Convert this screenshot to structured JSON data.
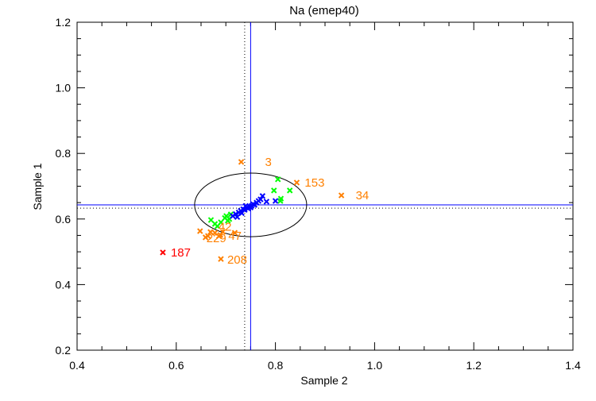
{
  "chart_data": {
    "type": "scatter",
    "title": "Na (emep40)",
    "xlabel": "Sample 2",
    "ylabel": "Sample 1",
    "xlim": [
      0.4,
      1.4
    ],
    "ylim": [
      0.2,
      1.2
    ],
    "xticks": [
      "0.4",
      "0.6",
      "0.8",
      "1.0",
      "1.2",
      "1.4"
    ],
    "yticks": [
      "0.2",
      "0.4",
      "0.6",
      "0.8",
      "1.0",
      "1.2"
    ],
    "minor_tick_step": 0.05,
    "reference_lines": {
      "solid_x": 0.75,
      "solid_y": 0.643,
      "solid_color": "#0000ff",
      "dotted_x": 0.738,
      "dotted_y": 0.633,
      "dotted_color": "#000000"
    },
    "ellipse": {
      "cx": 0.75,
      "cy": 0.643,
      "rx": 0.113,
      "ry": 0.097,
      "color": "#000000"
    },
    "series": [
      {
        "name": "blue",
        "color": "#0000ff",
        "points": [
          [
            0.714,
            0.609
          ],
          [
            0.72,
            0.615
          ],
          [
            0.726,
            0.62
          ],
          [
            0.73,
            0.625
          ],
          [
            0.735,
            0.63
          ],
          [
            0.738,
            0.628
          ],
          [
            0.742,
            0.635
          ],
          [
            0.745,
            0.632
          ],
          [
            0.748,
            0.638
          ],
          [
            0.752,
            0.64
          ],
          [
            0.755,
            0.645
          ],
          [
            0.758,
            0.643
          ],
          [
            0.762,
            0.65
          ],
          [
            0.766,
            0.655
          ],
          [
            0.77,
            0.66
          ],
          [
            0.774,
            0.67
          ],
          [
            0.782,
            0.653
          ],
          [
            0.8,
            0.655
          ],
          [
            0.732,
            0.618
          ],
          [
            0.74,
            0.64
          ],
          [
            0.75,
            0.635
          ],
          [
            0.723,
            0.606
          ]
        ]
      },
      {
        "name": "green",
        "color": "#00ff00",
        "points": [
          [
            0.67,
            0.597
          ],
          [
            0.683,
            0.578
          ],
          [
            0.69,
            0.59
          ],
          [
            0.701,
            0.609
          ],
          [
            0.707,
            0.6
          ],
          [
            0.71,
            0.614
          ],
          [
            0.698,
            0.603
          ],
          [
            0.704,
            0.595
          ],
          [
            0.678,
            0.585
          ],
          [
            0.805,
            0.721
          ],
          [
            0.797,
            0.687
          ],
          [
            0.829,
            0.687
          ],
          [
            0.81,
            0.655
          ],
          [
            0.811,
            0.662
          ]
        ]
      },
      {
        "name": "orange",
        "color": "#ff8000",
        "points": [
          [
            0.648,
            0.563
          ],
          [
            0.659,
            0.544
          ],
          [
            0.678,
            0.558
          ],
          [
            0.694,
            0.561
          ],
          [
            0.718,
            0.558
          ],
          [
            0.686,
            0.548
          ]
        ]
      }
    ],
    "labeled_points": [
      {
        "label": "3",
        "x": 0.731,
        "y": 0.774,
        "color": "#ff8000"
      },
      {
        "label": "153",
        "x": 0.843,
        "y": 0.711,
        "color": "#ff8000"
      },
      {
        "label": "34",
        "x": 0.933,
        "y": 0.672,
        "color": "#ff8000"
      },
      {
        "label": "187",
        "x": 0.573,
        "y": 0.498,
        "color": "#ff0000"
      },
      {
        "label": "208",
        "x": 0.69,
        "y": 0.478,
        "color": "#ff8000"
      },
      {
        "label": "42",
        "x": 0.685,
        "y": 0.565,
        "color": "#ff8000"
      },
      {
        "label": "229",
        "x": 0.68,
        "y": 0.553,
        "color": "#ff8000"
      },
      {
        "label": "47",
        "x": 0.705,
        "y": 0.556,
        "color": "#ff8000"
      }
    ]
  }
}
